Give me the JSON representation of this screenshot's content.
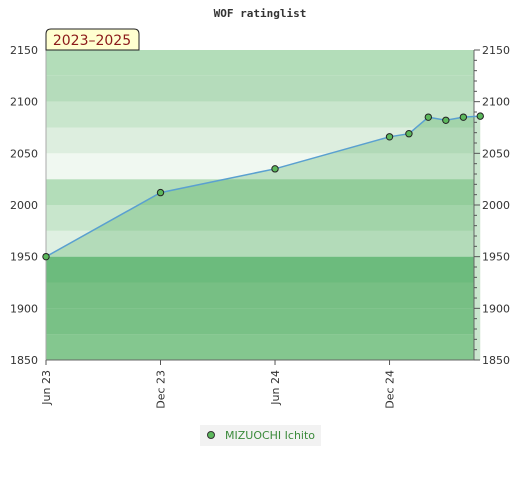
{
  "chart_data": {
    "type": "line",
    "title": "WOF ratinglist",
    "season_label": "2023–2025",
    "xlabel": "",
    "ylabel": "",
    "ylim": [
      1850,
      2150
    ],
    "yticks": [
      1850,
      1900,
      1950,
      2000,
      2050,
      2100,
      2150
    ],
    "xlim": [
      "2023-06-01",
      "2025-04-15"
    ],
    "xticks": [
      {
        "date": "2023-06-01",
        "label": "Jun 23"
      },
      {
        "date": "2023-12-01",
        "label": "Dec 23"
      },
      {
        "date": "2024-06-01",
        "label": "Jun 24"
      },
      {
        "date": "2024-12-01",
        "label": "Dec 24"
      }
    ],
    "legend_position": "bottom-center",
    "series": [
      {
        "name": "MIZUOCHI Ichito",
        "color": "#5aa0d0",
        "marker_color": "#5cb85c",
        "points": [
          {
            "x": "2023-06-01",
            "y": 1950
          },
          {
            "x": "2023-12-01",
            "y": 2012
          },
          {
            "x": "2024-06-01",
            "y": 2035
          },
          {
            "x": "2024-12-01",
            "y": 2066
          },
          {
            "x": "2025-01-01",
            "y": 2069
          },
          {
            "x": "2025-02-01",
            "y": 2085
          },
          {
            "x": "2025-03-01",
            "y": 2082
          },
          {
            "x": "2025-03-29",
            "y": 2085
          },
          {
            "x": "2025-04-25",
            "y": 2086
          }
        ]
      }
    ],
    "band_colors": [
      "#9fd4a8",
      "#8fcc9c",
      "#8cca99",
      "#7dc48f",
      "#dff0e2",
      "#c8e6cc",
      "#b3ddb9",
      "#f0f8f1",
      "#ddeedf",
      "#c9e6cd",
      "#b5dcbb",
      "#b3ddb9"
    ],
    "fill_color": "#3fa64f"
  }
}
